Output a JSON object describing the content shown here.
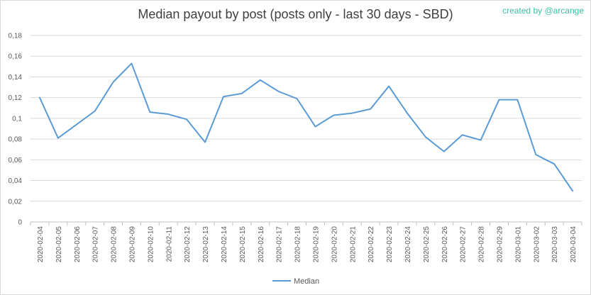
{
  "chart_data": {
    "type": "line",
    "title": "Median payout by post (posts only - last 30 days - SBD)",
    "credit": "created by @arcange",
    "categories": [
      "2020-02-04",
      "2020-02-05",
      "2020-02-06",
      "2020-02-07",
      "2020-02-08",
      "2020-02-09",
      "2020-02-10",
      "2020-02-11",
      "2020-02-12",
      "2020-02-13",
      "2020-02-14",
      "2020-02-15",
      "2020-02-16",
      "2020-02-17",
      "2020-02-18",
      "2020-02-19",
      "2020-02-20",
      "2020-02-21",
      "2020-02-22",
      "2020-02-23",
      "2020-02-24",
      "2020-02-25",
      "2020-02-26",
      "2020-02-27",
      "2020-02-28",
      "2020-02-29",
      "2020-03-01",
      "2020-03-02",
      "2020-03-03",
      "2020-03-04"
    ],
    "series": [
      {
        "name": "Median",
        "color": "#5b9bd5",
        "values": [
          0.12,
          0.081,
          0.094,
          0.107,
          0.135,
          0.153,
          0.106,
          0.104,
          0.099,
          0.077,
          0.121,
          0.124,
          0.137,
          0.126,
          0.119,
          0.092,
          0.103,
          0.105,
          0.109,
          0.131,
          0.105,
          0.082,
          0.068,
          0.084,
          0.079,
          0.118,
          0.118,
          0.065,
          0.056,
          0.03
        ]
      }
    ],
    "yticks": [
      "0",
      "0,02",
      "0,04",
      "0,06",
      "0,08",
      "0,1",
      "0,12",
      "0,14",
      "0,16",
      "0,18"
    ],
    "ylim": [
      0,
      0.18
    ],
    "grid": true,
    "legend": "bottom"
  }
}
